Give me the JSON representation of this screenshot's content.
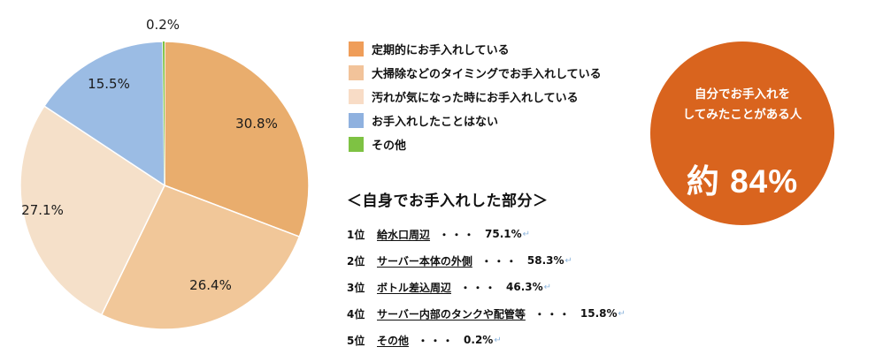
{
  "chart_data": {
    "type": "pie",
    "slices": [
      {
        "label": "定期的にお手入れしている",
        "value": 30.8,
        "value_label": "30.8%",
        "color": "#e9ad6d"
      },
      {
        "label": "大掃除などのタイミングでお手入れしている",
        "value": 26.4,
        "value_label": "26.4%",
        "color": "#f1c799"
      },
      {
        "label": "汚れが気になった時にお手入れしている",
        "value": 27.1,
        "value_label": "27.1%",
        "color": "#f5e0c9"
      },
      {
        "label": "お手入れしたことはない",
        "value": 15.5,
        "value_label": "15.5%",
        "color": "#9bbce4"
      },
      {
        "label": "その他",
        "value": 0.2,
        "value_label": "0.2%",
        "color": "#7ec243"
      }
    ],
    "legend_position": "right"
  },
  "legend_swatch_colors": [
    "#ef9d59",
    "#f2c39a",
    "#f8dcc6",
    "#8fb1df",
    "#7ec243"
  ],
  "section_title": "＜自身でお手入れした部分＞",
  "ranking": [
    {
      "pos": "1位",
      "name": "給水口周辺",
      "dots": "・・・",
      "pct": "75.1%"
    },
    {
      "pos": "2位",
      "name": "サーバー本体の外側",
      "dots": "・・・",
      "pct": "58.3%"
    },
    {
      "pos": "3位",
      "name": "ボトル差込周辺",
      "dots": "・・・",
      "pct": "46.3%"
    },
    {
      "pos": "4位",
      "name": "サーバー内部のタンクや配管等",
      "dots": "・・・",
      "pct": "15.8%"
    },
    {
      "pos": "5位",
      "name": "その他",
      "dots": "・・・",
      "pct": "0.2%"
    }
  ],
  "ranking_mark": "↵",
  "summary_circle": {
    "line1": "自分でお手入れを",
    "line2": "してみたことがある人",
    "value": "約 84%",
    "color": "#d9641e"
  }
}
